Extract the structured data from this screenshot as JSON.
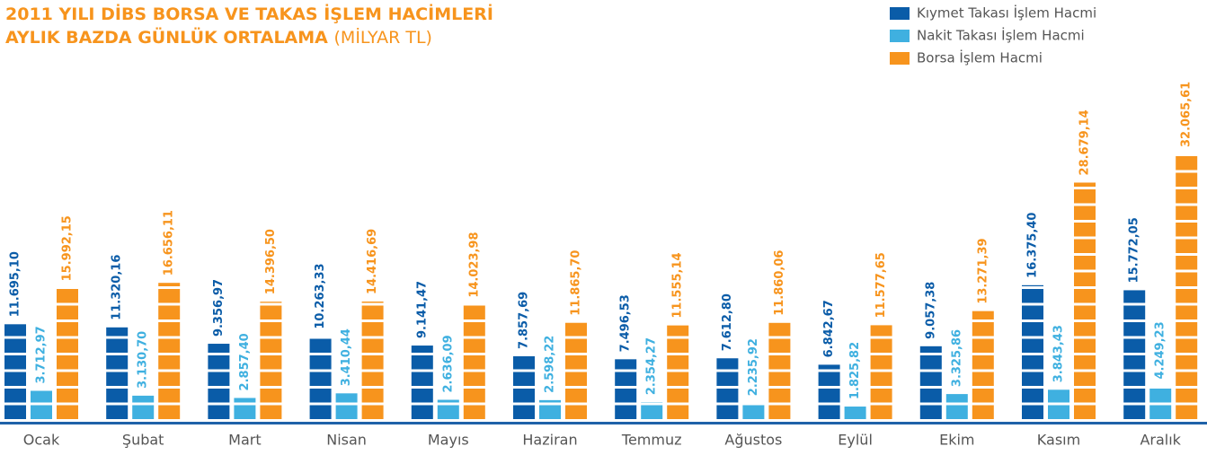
{
  "chart_data": {
    "type": "bar",
    "title": "2011 YILI DİBS BORSA VE TAKAS İŞLEM HACİMLERİ",
    "subtitle": "AYLIK BAZDA GÜNLÜK ORTALAMA",
    "unit": "(MİLYAR TL)",
    "categories": [
      "Ocak",
      "Şubat",
      "Mart",
      "Nisan",
      "Mayıs",
      "Haziran",
      "Temmuz",
      "Ağustos",
      "Eylül",
      "Ekim",
      "Kasım",
      "Aralık"
    ],
    "series": [
      {
        "name": "Kıymet Takası İşlem Hacmi",
        "color": "#0a5ca8",
        "values": [
          11695.1,
          11320.16,
          9356.97,
          10263.33,
          9141.47,
          7857.69,
          7496.53,
          7612.8,
          6842.67,
          9057.38,
          16375.4,
          15772.05
        ],
        "value_labels": [
          "11.695,10",
          "11.320,16",
          "9.356,97",
          "10.263,33",
          "9.141,47",
          "7.857,69",
          "7.496,53",
          "7.612,80",
          "6.842,67",
          "9.057,38",
          "16.375,40",
          "15.772,05"
        ]
      },
      {
        "name": "Nakit Takası İşlem Hacmi",
        "color": "#3fb0e0",
        "values": [
          3712.97,
          3130.7,
          2857.4,
          3410.44,
          2636.09,
          2598.22,
          2354.27,
          2235.92,
          1825.82,
          3325.86,
          3843.43,
          4249.23
        ],
        "value_labels": [
          "3.712,97",
          "3.130,70",
          "2.857,40",
          "3.410,44",
          "2.636,09",
          "2.598,22",
          "2.354,27",
          "2.235,92",
          "1.825,82",
          "3.325,86",
          "3.843,43",
          "4.249,23"
        ]
      },
      {
        "name": "Borsa İşlem Hacmi",
        "color": "#f7941d",
        "values": [
          15992.15,
          16656.11,
          14396.5,
          14416.69,
          14023.98,
          11865.7,
          11555.14,
          11860.06,
          11577.65,
          13271.39,
          28679.14,
          32065.61
        ],
        "value_labels": [
          "15.992,15",
          "16.656,11",
          "14.396,50",
          "14.416,69",
          "14.023,98",
          "11.865,70",
          "11.555,14",
          "11.860,06",
          "11.577,65",
          "13.271,39",
          "28.679,14",
          "32.065,61"
        ]
      }
    ]
  }
}
